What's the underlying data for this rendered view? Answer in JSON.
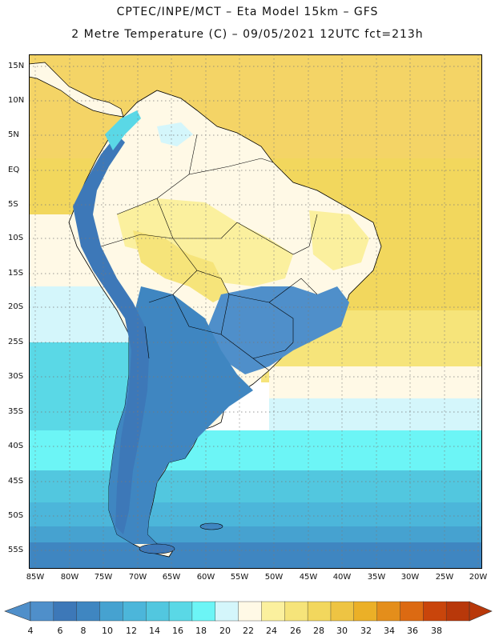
{
  "title": {
    "line1": "CPTEC/INPE/MCT –  Eta Model 15km – GFS",
    "line2": "2 Metre Temperature (C) – 09/05/2021 12UTC fct=213h"
  },
  "lat_labels": [
    "15N",
    "10N",
    "5N",
    "EQ",
    "5S",
    "10S",
    "15S",
    "20S",
    "25S",
    "30S",
    "35S",
    "40S",
    "45S",
    "50S",
    "55S"
  ],
  "lon_labels": [
    "85W",
    "80W",
    "75W",
    "70W",
    "65W",
    "60W",
    "55W",
    "50W",
    "45W",
    "40W",
    "35W",
    "30W",
    "25W",
    "20W"
  ],
  "colorbar": {
    "labels": [
      "4",
      "6",
      "8",
      "10",
      "12",
      "14",
      "16",
      "18",
      "20",
      "22",
      "24",
      "26",
      "28",
      "30",
      "32",
      "34",
      "36",
      "38"
    ],
    "colors": [
      "#4f8fca",
      "#3d78b8",
      "#3f86c1",
      "#46a2d0",
      "#4cb6da",
      "#52c7df",
      "#5ad8e6",
      "#6cf5f6",
      "#d4f6fb",
      "#fff9e6",
      "#fbf09e",
      "#f6e47a",
      "#f2d75d",
      "#eec443",
      "#ebb027",
      "#e48e1b",
      "#dc6a12",
      "#c9450b",
      "#b8380a"
    ]
  },
  "map": {
    "grid": "dotted",
    "colors": {
      "ocean_north": "#f4d466",
      "ocean_warm": "#f6e47a",
      "ocean_mid": "#d4f6fb",
      "ocean_cool": "#5ad8e6",
      "ocean_cold": "#4cb6da",
      "ocean_south": "#3d78b8",
      "land_warm": "#fff9e6",
      "land_yellow": "#fbf09e",
      "land_cool": "#4f8fca",
      "andes": "#3d78b8"
    }
  }
}
